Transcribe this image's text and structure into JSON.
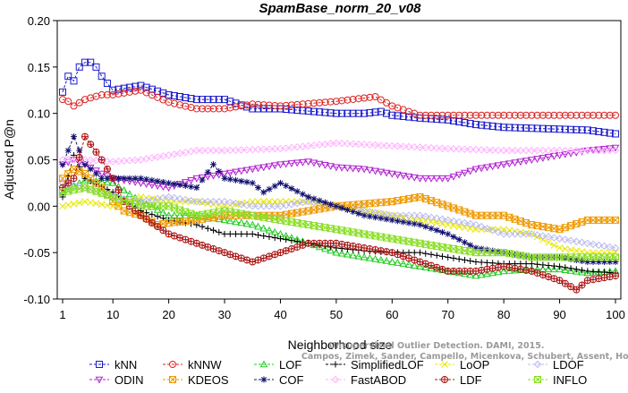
{
  "chart_data": {
    "type": "line",
    "title": "SpamBase_norm_20_v08",
    "xlabel": "Neighborhood size",
    "ylabel": "Adjusted P@n",
    "xlim": [
      0,
      100
    ],
    "ylim": [
      -0.1,
      0.2
    ],
    "xticks": [
      1,
      10,
      20,
      30,
      40,
      50,
      60,
      70,
      80,
      90,
      100
    ],
    "yticks": [
      -0.1,
      -0.05,
      0.0,
      0.05,
      0.1,
      0.15,
      0.2
    ],
    "ytick_labels": [
      "-0.10",
      "-0.05",
      "0.00",
      "0.05",
      "0.10",
      "0.15",
      "0.20"
    ],
    "grid": false,
    "legend_position": "bottom",
    "series": [
      {
        "name": "kNN",
        "color": "#1a1acc",
        "marker": "square",
        "points": [
          [
            1,
            0.123
          ],
          [
            2,
            0.14
          ],
          [
            3,
            0.135
          ],
          [
            4,
            0.15
          ],
          [
            5,
            0.155
          ],
          [
            6,
            0.155
          ],
          [
            7,
            0.15
          ],
          [
            8,
            0.14
          ],
          [
            10,
            0.125
          ],
          [
            15,
            0.13
          ],
          [
            20,
            0.12
          ],
          [
            25,
            0.115
          ],
          [
            30,
            0.115
          ],
          [
            35,
            0.105
          ],
          [
            40,
            0.105
          ],
          [
            50,
            0.1
          ],
          [
            55,
            0.1
          ],
          [
            58,
            0.102
          ],
          [
            60,
            0.098
          ],
          [
            65,
            0.095
          ],
          [
            70,
            0.093
          ],
          [
            75,
            0.088
          ],
          [
            80,
            0.085
          ],
          [
            90,
            0.083
          ],
          [
            95,
            0.082
          ],
          [
            100,
            0.078
          ]
        ]
      },
      {
        "name": "kNNW",
        "color": "#dd2222",
        "marker": "circle",
        "points": [
          [
            1,
            0.115
          ],
          [
            2,
            0.113
          ],
          [
            3,
            0.108
          ],
          [
            5,
            0.115
          ],
          [
            8,
            0.12
          ],
          [
            10,
            0.12
          ],
          [
            15,
            0.125
          ],
          [
            20,
            0.112
          ],
          [
            25,
            0.105
          ],
          [
            30,
            0.105
          ],
          [
            35,
            0.11
          ],
          [
            40,
            0.108
          ],
          [
            50,
            0.113
          ],
          [
            57,
            0.118
          ],
          [
            60,
            0.108
          ],
          [
            65,
            0.098
          ],
          [
            70,
            0.098
          ],
          [
            80,
            0.098
          ],
          [
            90,
            0.098
          ],
          [
            100,
            0.098
          ]
        ]
      },
      {
        "name": "LOF",
        "color": "#22cc22",
        "marker": "triangle-up",
        "points": [
          [
            1,
            0.015
          ],
          [
            5,
            0.028
          ],
          [
            10,
            0.025
          ],
          [
            15,
            0.005
          ],
          [
            20,
            -0.01
          ],
          [
            25,
            -0.01
          ],
          [
            30,
            -0.015
          ],
          [
            35,
            -0.02
          ],
          [
            40,
            -0.03
          ],
          [
            45,
            -0.04
          ],
          [
            50,
            -0.05
          ],
          [
            55,
            -0.055
          ],
          [
            60,
            -0.06
          ],
          [
            65,
            -0.065
          ],
          [
            70,
            -0.07
          ],
          [
            75,
            -0.075
          ],
          [
            80,
            -0.07
          ],
          [
            85,
            -0.068
          ],
          [
            90,
            -0.068
          ],
          [
            95,
            -0.072
          ],
          [
            100,
            -0.07
          ]
        ]
      },
      {
        "name": "SimplifiedLOF",
        "color": "#000000",
        "marker": "plus",
        "points": [
          [
            1,
            0.01
          ],
          [
            3,
            0.055
          ],
          [
            5,
            0.03
          ],
          [
            10,
            0.015
          ],
          [
            15,
            -0.005
          ],
          [
            20,
            -0.015
          ],
          [
            25,
            -0.02
          ],
          [
            30,
            -0.03
          ],
          [
            35,
            -0.03
          ],
          [
            40,
            -0.035
          ],
          [
            45,
            -0.04
          ],
          [
            50,
            -0.045
          ],
          [
            55,
            -0.048
          ],
          [
            60,
            -0.05
          ],
          [
            65,
            -0.05
          ],
          [
            70,
            -0.055
          ],
          [
            75,
            -0.06
          ],
          [
            80,
            -0.062
          ],
          [
            85,
            -0.062
          ],
          [
            90,
            -0.065
          ],
          [
            95,
            -0.07
          ],
          [
            100,
            -0.072
          ]
        ]
      },
      {
        "name": "LoOP",
        "color": "#e8e800",
        "marker": "x",
        "points": [
          [
            1,
            0.0
          ],
          [
            5,
            0.005
          ],
          [
            10,
            0.0
          ],
          [
            15,
            0.01
          ],
          [
            20,
            0.005
          ],
          [
            25,
            0.005
          ],
          [
            30,
            0.0
          ],
          [
            35,
            0.005
          ],
          [
            40,
            0.005
          ],
          [
            45,
            0.005
          ],
          [
            50,
            0.0
          ],
          [
            55,
            -0.005
          ],
          [
            60,
            -0.01
          ],
          [
            65,
            -0.015
          ],
          [
            70,
            -0.02
          ],
          [
            75,
            -0.025
          ],
          [
            80,
            -0.025
          ],
          [
            85,
            -0.03
          ],
          [
            90,
            -0.045
          ],
          [
            95,
            -0.05
          ],
          [
            100,
            -0.05
          ]
        ]
      },
      {
        "name": "LDOF",
        "color": "#b8b8ee",
        "marker": "diamond",
        "points": [
          [
            1,
            0.025
          ],
          [
            5,
            0.02
          ],
          [
            10,
            0.01
          ],
          [
            15,
            0.005
          ],
          [
            20,
            0.01
          ],
          [
            25,
            0.005
          ],
          [
            30,
            0.005
          ],
          [
            35,
            0.0
          ],
          [
            40,
            0.0
          ],
          [
            45,
            0.005
          ],
          [
            50,
            0.0
          ],
          [
            55,
            -0.005
          ],
          [
            60,
            -0.01
          ],
          [
            65,
            -0.01
          ],
          [
            70,
            -0.015
          ],
          [
            75,
            -0.02
          ],
          [
            80,
            -0.03
          ],
          [
            85,
            -0.03
          ],
          [
            90,
            -0.035
          ],
          [
            95,
            -0.04
          ],
          [
            100,
            -0.045
          ]
        ]
      },
      {
        "name": "ODIN",
        "color": "#b020d0",
        "marker": "triangle-down",
        "points": [
          [
            1,
            0.045
          ],
          [
            3,
            0.05
          ],
          [
            5,
            0.045
          ],
          [
            8,
            0.035
          ],
          [
            10,
            0.03
          ],
          [
            15,
            0.025
          ],
          [
            20,
            0.02
          ],
          [
            25,
            0.03
          ],
          [
            30,
            0.035
          ],
          [
            35,
            0.04
          ],
          [
            40,
            0.045
          ],
          [
            45,
            0.048
          ],
          [
            50,
            0.042
          ],
          [
            55,
            0.04
          ],
          [
            60,
            0.035
          ],
          [
            65,
            0.03
          ],
          [
            70,
            0.03
          ],
          [
            75,
            0.04
          ],
          [
            80,
            0.045
          ],
          [
            85,
            0.05
          ],
          [
            90,
            0.055
          ],
          [
            95,
            0.06
          ],
          [
            100,
            0.063
          ]
        ]
      },
      {
        "name": "KDEOS",
        "color": "#ee9900",
        "marker": "square-x",
        "points": [
          [
            1,
            0.03
          ],
          [
            3,
            0.04
          ],
          [
            5,
            0.035
          ],
          [
            8,
            0.02
          ],
          [
            10,
            0.005
          ],
          [
            12,
            -0.005
          ],
          [
            15,
            -0.01
          ],
          [
            18,
            -0.02
          ],
          [
            20,
            -0.018
          ],
          [
            25,
            -0.015
          ],
          [
            30,
            -0.01
          ],
          [
            40,
            -0.01
          ],
          [
            50,
            0.0
          ],
          [
            60,
            0.005
          ],
          [
            65,
            0.01
          ],
          [
            70,
            0.0
          ],
          [
            75,
            -0.01
          ],
          [
            80,
            -0.01
          ],
          [
            85,
            -0.02
          ],
          [
            90,
            -0.025
          ],
          [
            95,
            -0.015
          ],
          [
            100,
            -0.015
          ]
        ]
      },
      {
        "name": "COF",
        "color": "#101070",
        "marker": "asterisk",
        "points": [
          [
            1,
            0.045
          ],
          [
            3,
            0.075
          ],
          [
            5,
            0.045
          ],
          [
            8,
            0.03
          ],
          [
            10,
            0.03
          ],
          [
            15,
            0.03
          ],
          [
            20,
            0.025
          ],
          [
            25,
            0.02
          ],
          [
            28,
            0.045
          ],
          [
            30,
            0.03
          ],
          [
            35,
            0.025
          ],
          [
            37,
            0.015
          ],
          [
            40,
            0.025
          ],
          [
            45,
            0.01
          ],
          [
            50,
            0.0
          ],
          [
            55,
            -0.01
          ],
          [
            60,
            -0.015
          ],
          [
            65,
            -0.02
          ],
          [
            70,
            -0.03
          ],
          [
            75,
            -0.045
          ],
          [
            80,
            -0.05
          ],
          [
            85,
            -0.055
          ],
          [
            90,
            -0.055
          ],
          [
            95,
            -0.06
          ],
          [
            100,
            -0.06
          ]
        ]
      },
      {
        "name": "FastABOD",
        "color": "#ffb0ff",
        "marker": "diamond",
        "points": [
          [
            1,
            0.05
          ],
          [
            5,
            0.05
          ],
          [
            10,
            0.048
          ],
          [
            15,
            0.05
          ],
          [
            20,
            0.055
          ],
          [
            25,
            0.06
          ],
          [
            30,
            0.06
          ],
          [
            40,
            0.062
          ],
          [
            50,
            0.068
          ],
          [
            60,
            0.065
          ],
          [
            70,
            0.062
          ],
          [
            80,
            0.06
          ],
          [
            90,
            0.06
          ],
          [
            100,
            0.06
          ]
        ]
      },
      {
        "name": "LDF",
        "color": "#aa1111",
        "marker": "circle-plus",
        "points": [
          [
            1,
            0.02
          ],
          [
            3,
            0.03
          ],
          [
            5,
            0.075
          ],
          [
            8,
            0.05
          ],
          [
            10,
            0.03
          ],
          [
            12,
            0.005
          ],
          [
            15,
            -0.01
          ],
          [
            20,
            -0.03
          ],
          [
            25,
            -0.04
          ],
          [
            30,
            -0.05
          ],
          [
            35,
            -0.06
          ],
          [
            40,
            -0.05
          ],
          [
            45,
            -0.04
          ],
          [
            50,
            -0.04
          ],
          [
            55,
            -0.045
          ],
          [
            60,
            -0.05
          ],
          [
            65,
            -0.06
          ],
          [
            70,
            -0.07
          ],
          [
            75,
            -0.07
          ],
          [
            80,
            -0.065
          ],
          [
            85,
            -0.07
          ],
          [
            90,
            -0.08
          ],
          [
            93,
            -0.09
          ],
          [
            95,
            -0.08
          ],
          [
            100,
            -0.075
          ]
        ]
      },
      {
        "name": "INFLO",
        "color": "#88dd22",
        "marker": "square-x",
        "points": [
          [
            1,
            0.015
          ],
          [
            5,
            0.02
          ],
          [
            10,
            0.01
          ],
          [
            15,
            0.0
          ],
          [
            20,
            0.0
          ],
          [
            25,
            -0.01
          ],
          [
            30,
            -0.005
          ],
          [
            35,
            -0.01
          ],
          [
            40,
            -0.015
          ],
          [
            45,
            -0.02
          ],
          [
            50,
            -0.025
          ],
          [
            55,
            -0.03
          ],
          [
            60,
            -0.035
          ],
          [
            65,
            -0.04
          ],
          [
            70,
            -0.045
          ],
          [
            75,
            -0.05
          ],
          [
            80,
            -0.05
          ],
          [
            85,
            -0.055
          ],
          [
            90,
            -0.055
          ],
          [
            95,
            -0.055
          ],
          [
            100,
            -0.055
          ]
        ]
      }
    ],
    "watermark_lines": [
      "Unsupervised Outlier Detection. DAMI, 2015.",
      "Campos, Zimek, Sander, Campello, Micenkova, Schubert, Assent, Houle"
    ]
  }
}
